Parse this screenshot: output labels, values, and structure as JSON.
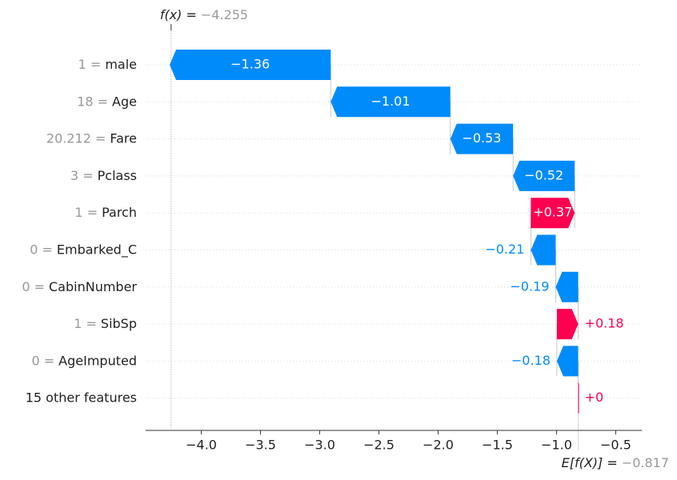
{
  "chart_data": {
    "type": "waterfall",
    "feature_values": [
      "1 =",
      "18 =",
      "20.212 =",
      "3 =",
      "1 =",
      "0 =",
      "0 =",
      "1 =",
      "0 =",
      null
    ],
    "categories": [
      "male",
      "Age",
      "Fare",
      "Pclass",
      "Parch",
      "Embarked_C",
      "CabinNumber",
      "SibSp",
      "AgeImputed",
      "15 other features"
    ],
    "values": [
      -1.36,
      -1.01,
      -0.53,
      -0.52,
      0.37,
      -0.21,
      -0.19,
      0.18,
      -0.18,
      0
    ],
    "value_labels": [
      "−1.36",
      "−1.01",
      "−0.53",
      "−0.52",
      "+0.37",
      "−0.21",
      "−0.19",
      "+0.18",
      "−0.18",
      "+0"
    ],
    "positive_color": "#ff0051",
    "negative_color": "#008bfb",
    "base": {
      "name": "E[f(X)] =",
      "value": -0.817,
      "label": "−0.817"
    },
    "output": {
      "name": "f(x) =",
      "value": -4.255,
      "label": "−4.255"
    },
    "xlim": [
      -4.47,
      -0.28
    ],
    "xticks": [
      {
        "value": -4.0,
        "label": "−4.0"
      },
      {
        "value": -3.5,
        "label": "−3.5"
      },
      {
        "value": -3.0,
        "label": "−3.0"
      },
      {
        "value": -2.5,
        "label": "−2.5"
      },
      {
        "value": -2.0,
        "label": "−2.0"
      },
      {
        "value": -1.5,
        "label": "−1.5"
      },
      {
        "value": -1.0,
        "label": "−1.0"
      },
      {
        "value": -0.5,
        "label": "−0.5"
      }
    ]
  }
}
